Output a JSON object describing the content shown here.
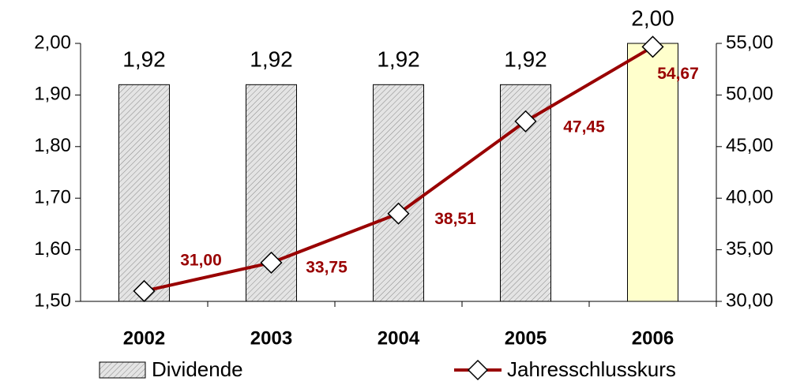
{
  "chart_data": {
    "type": "bar",
    "categories": [
      "2002",
      "2003",
      "2004",
      "2005",
      "2006"
    ],
    "series": [
      {
        "name": "Dividende",
        "type": "bar",
        "values": [
          1.92,
          1.92,
          1.92,
          1.92,
          2.0
        ],
        "value_labels": [
          "1,92",
          "1,92",
          "1,92",
          "1,92",
          "2,00"
        ],
        "colors": [
          "#c8c8c8",
          "#c8c8c8",
          "#c8c8c8",
          "#c8c8c8",
          "#ffffcc"
        ],
        "hatch": [
          true,
          true,
          true,
          true,
          false
        ]
      },
      {
        "name": "Jahresschlusskurs",
        "type": "line",
        "axis": "y2",
        "color": "#990000",
        "values": [
          31.0,
          33.75,
          38.51,
          47.45,
          54.67
        ],
        "value_labels": [
          "31,00",
          "33,75",
          "38,51",
          "47,45",
          "54,67"
        ]
      }
    ],
    "ylim": [
      1.5,
      2.0
    ],
    "yticks": [
      {
        "value": 1.5,
        "label": "1,50"
      },
      {
        "value": 1.6,
        "label": "1,60"
      },
      {
        "value": 1.7,
        "label": "1,70"
      },
      {
        "value": 1.8,
        "label": "1,80"
      },
      {
        "value": 1.9,
        "label": "1,90"
      },
      {
        "value": 2.0,
        "label": "2,00"
      }
    ],
    "y2lim": [
      30,
      55
    ],
    "y2ticks": [
      {
        "value": 30,
        "label": "30,00"
      },
      {
        "value": 35,
        "label": "35,00"
      },
      {
        "value": 40,
        "label": "40,00"
      },
      {
        "value": 45,
        "label": "45,00"
      },
      {
        "value": 50,
        "label": "50,00"
      },
      {
        "value": 55,
        "label": "55,00"
      }
    ]
  }
}
